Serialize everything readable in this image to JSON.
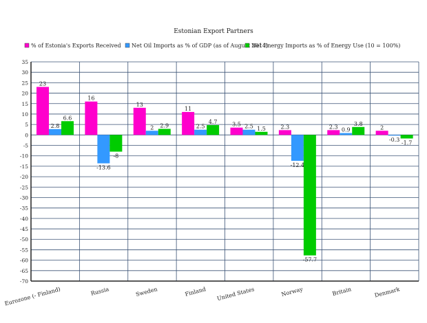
{
  "chart_data": {
    "type": "bar",
    "title": "Estonian Export Partners",
    "xlabel": "",
    "ylabel": "",
    "ylim": [
      -70,
      35
    ],
    "ytick_step": 5,
    "grid": true,
    "legend_position": "top",
    "categories": [
      "Eurozone (- Finland)",
      "Russia",
      "Sweden",
      "Finland",
      "United States",
      "Norway",
      "Britain",
      "Denmark"
    ],
    "series": [
      {
        "name": "% of Estonia's Exports Received",
        "color": "#ff00cc",
        "values": [
          23,
          16,
          13,
          11,
          3.5,
          2.3,
          2.3,
          2
        ]
      },
      {
        "name": "Net Oil Imports as % of GDP (as of August 2014)",
        "color": "#3399ff",
        "values": [
          2.8,
          -13.6,
          2,
          2.5,
          2.5,
          -12.4,
          0.9,
          -0.3
        ]
      },
      {
        "name": "Net Energy Imports as % of Energy Use (10 = 100%)",
        "color": "#00cc00",
        "values": [
          6.6,
          -8,
          2.9,
          4.7,
          1.5,
          -57.7,
          3.8,
          -1.7
        ]
      }
    ]
  }
}
